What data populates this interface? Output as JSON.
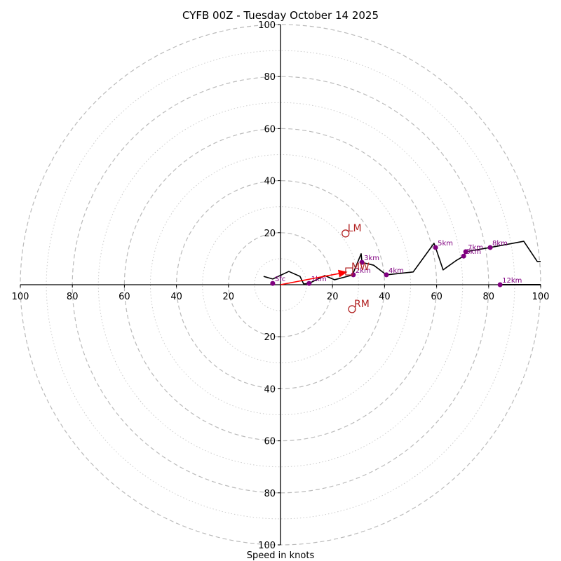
{
  "chart_data": {
    "type": "line",
    "subtype": "hodograph",
    "title": "CYFB 00Z - Tuesday October 14 2025",
    "xlabel": "Speed in knots",
    "range_knots": [
      -100,
      100
    ],
    "rings_major": [
      20,
      40,
      60,
      80,
      100
    ],
    "rings_minor": [
      10,
      30,
      50,
      70,
      90
    ],
    "tick_labels": [
      "100",
      "80",
      "60",
      "40",
      "20",
      "20",
      "40",
      "60",
      "80",
      "100"
    ],
    "hodograph_line": [
      [
        -6.5,
        3.2
      ],
      [
        -3,
        2.2
      ],
      [
        3.2,
        5.1
      ],
      [
        7.5,
        3.2
      ],
      [
        8.9,
        0.3
      ],
      [
        11,
        0.5
      ],
      [
        17,
        3.5
      ],
      [
        20.8,
        1.9
      ],
      [
        28,
        3.8
      ],
      [
        28,
        4.6
      ],
      [
        31,
        11.9
      ],
      [
        31.3,
        8.6
      ],
      [
        35.8,
        7.5
      ],
      [
        40.7,
        3.8
      ],
      [
        51,
        4.9
      ],
      [
        59,
        15.9
      ],
      [
        59.6,
        14.3
      ],
      [
        62.5,
        5.7
      ],
      [
        67.4,
        9.2
      ],
      [
        70.4,
        11
      ],
      [
        71.2,
        12.7
      ],
      [
        80.6,
        14.3
      ],
      [
        93.5,
        16.7
      ],
      [
        98.7,
        8.9
      ],
      [
        100,
        8.9
      ]
    ],
    "upper_segment": [
      [
        84.4,
        0
      ],
      [
        100,
        0
      ]
    ],
    "height_markers": [
      {
        "label": "Sfc",
        "u": -3,
        "v": 0.5
      },
      {
        "label": "1km",
        "u": 11,
        "v": 0.5
      },
      {
        "label": "2km",
        "u": 28,
        "v": 3.8
      },
      {
        "label": "3km",
        "u": 31.3,
        "v": 8.6
      },
      {
        "label": "4km",
        "u": 40.7,
        "v": 3.8
      },
      {
        "label": "5km",
        "u": 59.6,
        "v": 14.3
      },
      {
        "label": "6km",
        "u": 70.4,
        "v": 11
      },
      {
        "label": "7km",
        "u": 71.2,
        "v": 12.7
      },
      {
        "label": "8km",
        "u": 80.6,
        "v": 14.3
      },
      {
        "label": "12km",
        "u": 84.4,
        "v": 0
      }
    ],
    "storm_motion": {
      "MW": {
        "label": "MW",
        "u": 26.4,
        "v": 5.1
      },
      "LM": {
        "label": "LM",
        "u": 25,
        "v": 19.7
      },
      "RM": {
        "label": "RM",
        "u": 27.5,
        "v": -9.4
      }
    },
    "colors": {
      "hodo": "#000000",
      "marker": "#800080",
      "storm": "#b22222",
      "arrow": "#ff0000",
      "ring": "#bbbbbb"
    }
  }
}
